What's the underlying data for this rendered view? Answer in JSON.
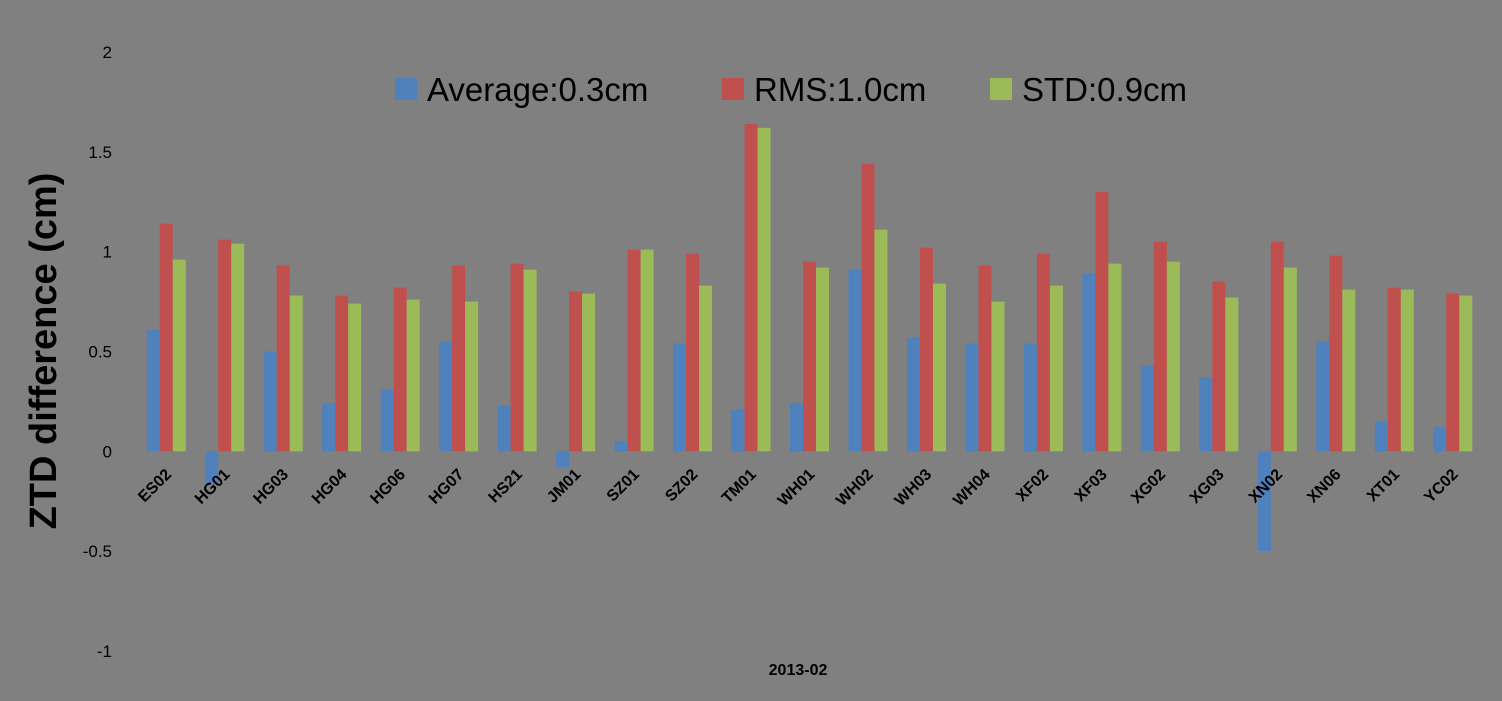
{
  "chart_data": {
    "type": "bar",
    "xlabel": "2013-02",
    "ylabel": "ZTD difference (cm)",
    "ylim": [
      -1,
      2
    ],
    "yticks": [
      -1,
      -0.5,
      0,
      0.5,
      1,
      1.5,
      2
    ],
    "ytick_labels": [
      "-1",
      "-0.5",
      "0",
      "0.5",
      "1",
      "1.5",
      "2"
    ],
    "grid": false,
    "legend_position": "top-center",
    "categories": [
      "ES02",
      "HG01",
      "HG03",
      "HG04",
      "HG06",
      "HG07",
      "HS21",
      "JM01",
      "SZ01",
      "SZ02",
      "TM01",
      "WH01",
      "WH02",
      "WH03",
      "WH04",
      "XF02",
      "XF03",
      "XG02",
      "XG03",
      "XN02",
      "XN06",
      "XT01",
      "YC02"
    ],
    "series": [
      {
        "name": "Average:0.3cm",
        "color": "#4F81BD",
        "values": [
          0.61,
          -0.16,
          0.5,
          0.24,
          0.31,
          0.55,
          0.23,
          -0.08,
          0.05,
          0.54,
          0.21,
          0.24,
          0.91,
          0.57,
          0.54,
          0.54,
          0.89,
          0.43,
          0.37,
          -0.5,
          0.55,
          0.15,
          0.12
        ]
      },
      {
        "name": "RMS:1.0cm",
        "color": "#C0504D",
        "values": [
          1.14,
          1.06,
          0.93,
          0.78,
          0.82,
          0.93,
          0.94,
          0.8,
          1.01,
          0.99,
          1.64,
          0.95,
          1.44,
          1.02,
          0.93,
          0.99,
          1.3,
          1.05,
          0.85,
          1.05,
          0.98,
          0.82,
          0.79
        ]
      },
      {
        "name": "STD:0.9cm",
        "color": "#9BBB59",
        "values": [
          0.96,
          1.04,
          0.78,
          0.74,
          0.76,
          0.75,
          0.91,
          0.79,
          1.01,
          0.83,
          1.62,
          0.92,
          1.11,
          0.84,
          0.75,
          0.83,
          0.94,
          0.95,
          0.77,
          0.92,
          0.81,
          0.81,
          0.78
        ]
      }
    ]
  }
}
